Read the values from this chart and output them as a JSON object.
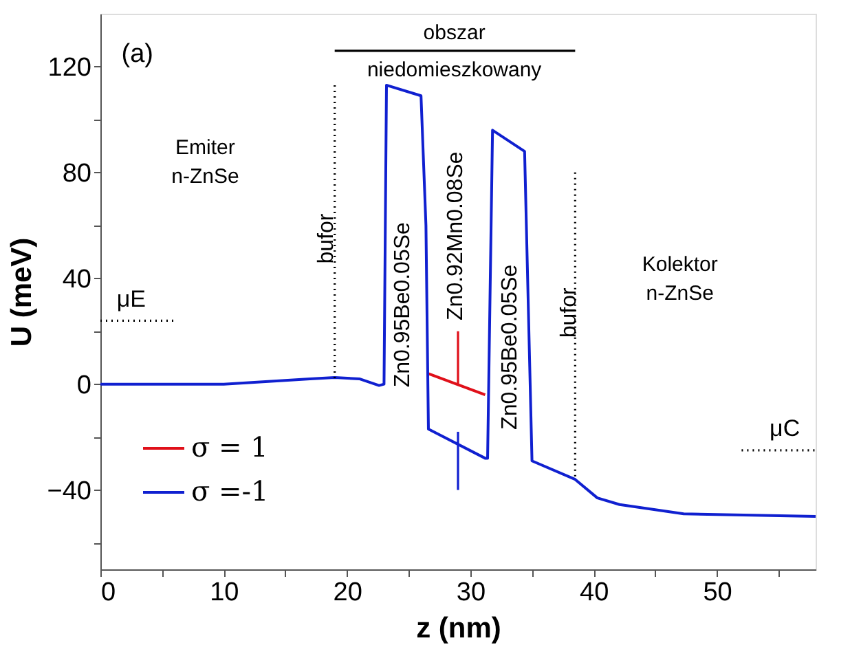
{
  "chart_data": {
    "type": "line",
    "xlabel": "z (nm)",
    "ylabel": "U (meV)",
    "xlim": [
      0,
      58
    ],
    "ylim": [
      -70,
      140
    ],
    "xticks": [
      0,
      {
        "value": 5,
        "label": null
      },
      10,
      {
        "value": 15,
        "label": null
      },
      20,
      {
        "value": 25,
        "label": null
      },
      30,
      {
        "value": 35,
        "label": null
      },
      40,
      {
        "value": 45,
        "label": null
      },
      50,
      {
        "value": 55,
        "label": null
      }
    ],
    "yticks": [
      {
        "value": -60,
        "label": null
      },
      -40,
      {
        "value": -20,
        "label": null
      },
      0,
      {
        "value": 20,
        "label": null
      },
      40,
      {
        "value": 60,
        "label": null
      },
      80,
      {
        "value": 100,
        "label": null
      },
      120
    ],
    "grid": false,
    "legend": "bottom left",
    "line_style": "solid",
    "marker": "none",
    "series": [
      {
        "name": "σ = 1",
        "color": "#e0101a",
        "x": [
          26.6,
          31.2
        ],
        "values": [
          4,
          -4
        ]
      },
      {
        "name": "σ =-1",
        "color": "#1020d0",
        "x": [
          0,
          10,
          17,
          19,
          21,
          22.6,
          23.0,
          23.2,
          26.0,
          26.4,
          26.6,
          31.2,
          31.4,
          31.8,
          34.4,
          35.0,
          38.5,
          40.3,
          42.1,
          47.3,
          58
        ],
        "values": [
          0,
          0,
          2,
          2.5,
          2,
          -0.5,
          0,
          113,
          109,
          60,
          -17,
          -28,
          -28,
          96,
          88,
          -29,
          -36,
          -43,
          -45.5,
          -49,
          -50
        ]
      },
      {
        "color": "#1020d0",
        "x": [
          29,
          29
        ],
        "values": [
          -18,
          -40
        ]
      },
      {
        "color": "#e0101a",
        "x": [
          29,
          29
        ],
        "values": [
          0,
          20
        ]
      },
      {
        "color": "#000000",
        "line_style": "dotted",
        "x": [
          0,
          6
        ],
        "values": [
          24,
          24
        ]
      },
      {
        "color": "#000000",
        "line_style": "dotted",
        "x": [
          52,
          58
        ],
        "values": [
          -25,
          -25
        ]
      },
      {
        "color": "#000000",
        "line_style": "dotted",
        "x": [
          19,
          19
        ],
        "values": [
          113,
          1
        ]
      },
      {
        "color": "#000000",
        "line_style": "dotted",
        "x": [
          38.5,
          38.5
        ],
        "values": [
          80,
          -36
        ]
      },
      {
        "color": "#000000",
        "x": [
          19,
          38.5
        ],
        "values": [
          126,
          126
        ]
      }
    ],
    "annotations": [
      "(a)",
      "Emiter\nn-ZnSe",
      "Kolektor\nn-ZnSe",
      "obszar\nniedomieszkowany",
      "bufor",
      "Zn0.95Be0.05Se",
      "Zn0.92Mn0.08Se",
      "Zn0.95Be0.05Se",
      "bufor",
      "μE",
      "μC"
    ]
  }
}
